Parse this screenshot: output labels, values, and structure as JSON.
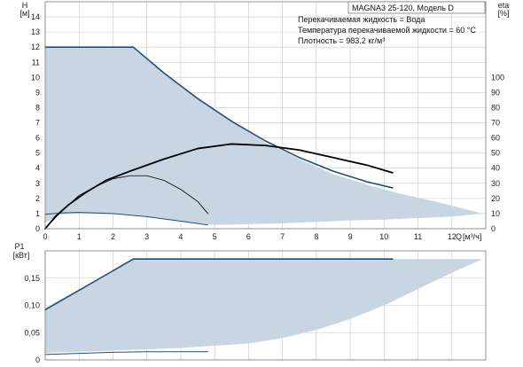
{
  "chart_data": [
    {
      "type": "line",
      "panel": "head-efficiency",
      "model_label": "MAGNA3 25-120, Модель D",
      "annotations": [
        "Перекачиваемая жидкость = Вода",
        "Температура перекачиваемой жидкости = 60 °C",
        "Плотность = 983.2 кг/м³"
      ],
      "xlabel": "Q",
      "xunit": "[м³/ч]",
      "xlim": [
        0,
        13
      ],
      "x_ticks": [
        0,
        1,
        2,
        3,
        4,
        5,
        6,
        7,
        8,
        9,
        10,
        11,
        12
      ],
      "ylabel_left": "H",
      "yunit_left": "[м]",
      "ylim_left": [
        0,
        15
      ],
      "y_ticks_left": [
        0,
        1,
        2,
        3,
        4,
        5,
        6,
        7,
        8,
        9,
        10,
        11,
        12,
        13,
        14
      ],
      "ylabel_right": "eta",
      "yunit_right": "[%]",
      "ylim_right": [
        0,
        150
      ],
      "y_ticks_right": [
        0,
        10,
        20,
        30,
        40,
        50,
        60,
        70,
        80,
        90,
        100
      ],
      "grid": true,
      "colors": {
        "area": "#c8d6e3",
        "curve": "#1f4e79",
        "eta": "#000000"
      },
      "series": [
        {
          "role": "operating-area",
          "upper": {
            "x": [
              0,
              2.6,
              3.5,
              4.5,
              5.5,
              6.5,
              7.5,
              8.5,
              9.5,
              10.5,
              11.5,
              12.4,
              12.9
            ],
            "y": [
              12,
              12,
              10.3,
              8.6,
              7.1,
              5.7,
              4.6,
              3.6,
              2.9,
              2.3,
              1.8,
              1.3,
              1.0
            ]
          },
          "lower": {
            "x": [
              0,
              0.4,
              1,
              2,
              3,
              4,
              5,
              6,
              7,
              8,
              9,
              10,
              11,
              12,
              12.9
            ],
            "y": [
              0.4,
              0.9,
              1.05,
              1.0,
              0.8,
              0.5,
              0.25,
              0.3,
              0.35,
              0.45,
              0.55,
              0.6,
              0.7,
              0.8,
              1.0
            ]
          }
        },
        {
          "role": "max-head-curve",
          "x": [
            0,
            2.6,
            3.5,
            4.5,
            5.5,
            6.5,
            7.5,
            8.5,
            9.5,
            10.25
          ],
          "y": [
            12,
            12,
            10.3,
            8.6,
            7.1,
            5.8,
            4.7,
            3.8,
            3.1,
            2.7
          ]
        },
        {
          "role": "min-head-curve",
          "x": [
            0,
            0.5,
            1,
            2,
            3,
            4,
            4.8
          ],
          "y": [
            0.95,
            1.05,
            1.08,
            1.0,
            0.8,
            0.5,
            0.25
          ]
        },
        {
          "role": "max-efficiency",
          "x": [
            0,
            0.3,
            0.7,
            1.2,
            1.8,
            2.5,
            3.5,
            4.5,
            5.5,
            6.5,
            7.5,
            8.5,
            9.5,
            10.25
          ],
          "y": [
            0,
            8,
            16,
            24,
            32,
            38,
            46,
            53,
            56,
            55,
            52,
            47,
            42,
            37
          ]
        },
        {
          "role": "min-efficiency",
          "x": [
            0,
            0.5,
            1,
            1.5,
            2,
            2.5,
            3,
            3.5,
            4,
            4.5,
            4.8
          ],
          "y": [
            0,
            12,
            22,
            28,
            33,
            35,
            35,
            32,
            26,
            18,
            10
          ]
        }
      ]
    },
    {
      "type": "line",
      "panel": "power",
      "ylabel": "P1",
      "yunit": "[кВт]",
      "xlim": [
        0,
        13
      ],
      "ylim": [
        0,
        0.2
      ],
      "y_ticks": [
        0,
        0.05,
        0.1,
        0.15
      ],
      "y_tick_labels": [
        "0",
        "0,05",
        "0,10",
        "0,15"
      ],
      "grid": true,
      "series": [
        {
          "role": "power-area",
          "upper": {
            "x": [
              0,
              2.6,
              12.9
            ],
            "y": [
              0.095,
              0.185,
              0.185
            ]
          },
          "lower": {
            "x": [
              0,
              2,
              4,
              6,
              7,
              8,
              9,
              10,
              11,
              12,
              12.9
            ],
            "y": [
              0.013,
              0.017,
              0.022,
              0.03,
              0.04,
              0.055,
              0.075,
              0.1,
              0.13,
              0.16,
              0.185
            ]
          }
        },
        {
          "role": "max-power-curve",
          "x": [
            0,
            2.6,
            10.25
          ],
          "y": [
            0.092,
            0.185,
            0.185
          ]
        },
        {
          "role": "min-power-curve",
          "x": [
            0,
            1,
            2,
            3,
            4,
            4.8
          ],
          "y": [
            0.01,
            0.012,
            0.014,
            0.015,
            0.015,
            0.015
          ]
        }
      ]
    }
  ]
}
